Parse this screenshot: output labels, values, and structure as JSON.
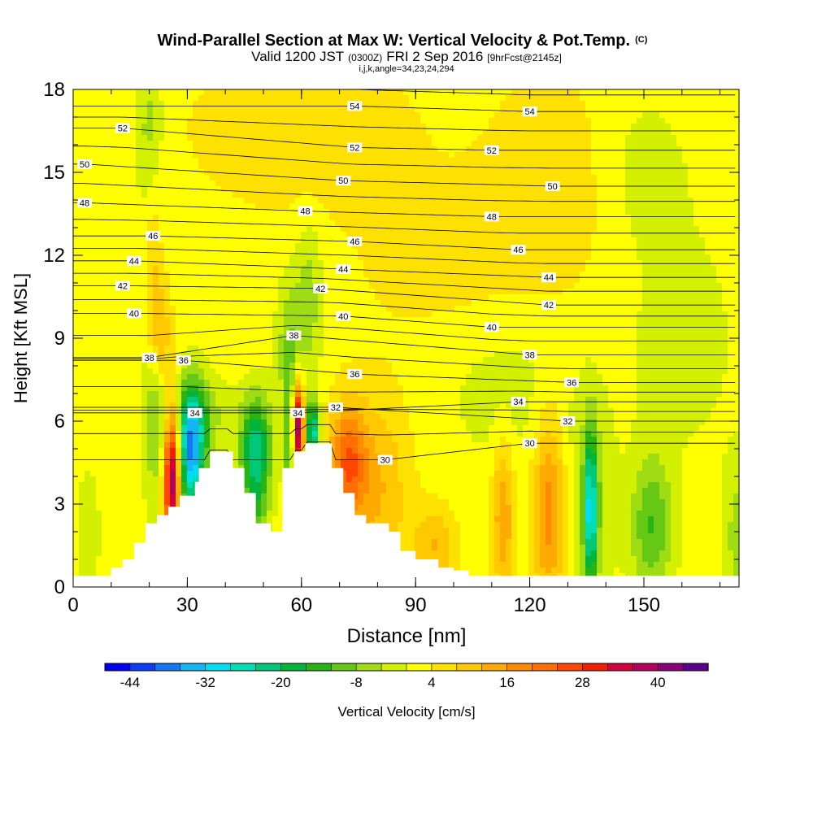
{
  "chart_data": {
    "type": "heatmap",
    "title": "Wind-Parallel Section at Max W: Vertical Velocity & Pot.Temp.",
    "title_mark": "(C)",
    "subtitle_parts": [
      "Valid 1200 JST",
      "(0300Z)",
      "FRI 2 Sep 2016",
      "[9hrFcst@2145z]"
    ],
    "subtitle2": "i,j,k,angle=34,23,24,294",
    "xlabel": "Distance [nm]",
    "ylabel": "Height [Kft MSL]",
    "xlim": [
      0,
      175
    ],
    "ylim": [
      0,
      18
    ],
    "xticks": [
      0,
      30,
      60,
      90,
      120,
      150
    ],
    "yticks": [
      0,
      3,
      6,
      9,
      12,
      15,
      18
    ],
    "colorbar": {
      "label": "Vertical Velocity [cm/s]",
      "ticks": [
        -44,
        -32,
        -20,
        -8,
        4,
        16,
        28,
        40
      ],
      "range": [
        -48,
        48
      ],
      "colors": [
        "#0000f0",
        "#0a3ef5",
        "#1478f5",
        "#14b4f5",
        "#00dcf0",
        "#00dcb4",
        "#00c878",
        "#00b43c",
        "#28b414",
        "#64c814",
        "#a0dc14",
        "#d2f000",
        "#ffff00",
        "#ffe100",
        "#ffc800",
        "#ffaa00",
        "#ff8c00",
        "#ff6e00",
        "#ff4600",
        "#f01e00",
        "#d2003c",
        "#b4005a",
        "#8c0078",
        "#5a008c"
      ]
    },
    "background_value": 2,
    "features": [
      {
        "x": 26,
        "y": 4.0,
        "sx": 1.6,
        "sy": 1.8,
        "w": 42
      },
      {
        "x": 22,
        "y": 6.5,
        "sx": 2.5,
        "sy": 2.5,
        "w": -12
      },
      {
        "x": 23,
        "y": 9.0,
        "sx": 2.0,
        "sy": 1.5,
        "w": 14
      },
      {
        "x": 21,
        "y": 11.5,
        "sx": 1.5,
        "sy": 2.5,
        "w": 6
      },
      {
        "x": 20,
        "y": 16.5,
        "sx": 2.5,
        "sy": 2.0,
        "w": -8
      },
      {
        "x": 31,
        "y": 4.8,
        "sx": 2.5,
        "sy": 1.6,
        "w": -36
      },
      {
        "x": 33,
        "y": 6.2,
        "sx": 5.0,
        "sy": 1.0,
        "w": -10
      },
      {
        "x": 48,
        "y": 5.3,
        "sx": 3.0,
        "sy": 1.2,
        "w": -20
      },
      {
        "x": 48,
        "y": 3.2,
        "sx": 2.5,
        "sy": 1.5,
        "w": -14
      },
      {
        "x": 57,
        "y": 5.2,
        "sx": 1.0,
        "sy": 1.5,
        "w": -20
      },
      {
        "x": 59,
        "y": 5.8,
        "sx": 1.2,
        "sy": 1.2,
        "w": 40
      },
      {
        "x": 57,
        "y": 8.5,
        "sx": 2.5,
        "sy": 1.8,
        "w": -10
      },
      {
        "x": 63,
        "y": 5.6,
        "sx": 1.2,
        "sy": 0.8,
        "w": -30
      },
      {
        "x": 62,
        "y": 10.5,
        "sx": 2.5,
        "sy": 2.0,
        "w": -8
      },
      {
        "x": 72,
        "y": 4.5,
        "sx": 3.5,
        "sy": 1.5,
        "w": 20
      },
      {
        "x": 80,
        "y": 3.5,
        "sx": 6.0,
        "sy": 2.5,
        "w": 10
      },
      {
        "x": 95,
        "y": 1.5,
        "sx": 4.0,
        "sy": 1.0,
        "w": 10
      },
      {
        "x": 113,
        "y": 2.5,
        "sx": 2.0,
        "sy": 2.0,
        "w": 14
      },
      {
        "x": 125,
        "y": 2.8,
        "sx": 3.0,
        "sy": 2.5,
        "w": 16
      },
      {
        "x": 136,
        "y": 2.8,
        "sx": 1.2,
        "sy": 2.0,
        "w": -26
      },
      {
        "x": 136,
        "y": 3.0,
        "sx": 4.0,
        "sy": 2.5,
        "w": -8
      },
      {
        "x": 152,
        "y": 2.2,
        "sx": 4.0,
        "sy": 1.8,
        "w": -14
      },
      {
        "x": 175,
        "y": 1.8,
        "sx": 3.0,
        "sy": 2.0,
        "w": -8
      },
      {
        "x": 4,
        "y": 2.0,
        "sx": 2.0,
        "sy": 1.5,
        "w": -6
      },
      {
        "x": 60,
        "y": 16.5,
        "sx": 20.0,
        "sy": 2.0,
        "w": 6
      },
      {
        "x": 125,
        "y": 14.5,
        "sx": 12.0,
        "sy": 3.0,
        "w": 5
      },
      {
        "x": 150,
        "y": 15.0,
        "sx": 8.0,
        "sy": 2.0,
        "w": -4
      },
      {
        "x": 115,
        "y": 7.0,
        "sx": 12.0,
        "sy": 2.0,
        "w": -4
      },
      {
        "x": 160,
        "y": 9.0,
        "sx": 10.0,
        "sy": 3.0,
        "w": -4
      },
      {
        "x": 95,
        "y": 12.0,
        "sx": 15.0,
        "sy": 2.0,
        "w": 4
      }
    ],
    "terrain": [
      {
        "x": 0,
        "h": 0.4
      },
      {
        "x": 10,
        "h": 0.4
      },
      {
        "x": 10,
        "h": 0.7
      },
      {
        "x": 13,
        "h": 0.7
      },
      {
        "x": 13,
        "h": 1.0
      },
      {
        "x": 16,
        "h": 1.0
      },
      {
        "x": 16,
        "h": 1.6
      },
      {
        "x": 19,
        "h": 1.6
      },
      {
        "x": 19,
        "h": 2.3
      },
      {
        "x": 22,
        "h": 2.3
      },
      {
        "x": 22,
        "h": 2.6
      },
      {
        "x": 25,
        "h": 2.6
      },
      {
        "x": 25,
        "h": 2.9
      },
      {
        "x": 28,
        "h": 2.9
      },
      {
        "x": 28,
        "h": 3.3
      },
      {
        "x": 32,
        "h": 3.3
      },
      {
        "x": 32,
        "h": 3.8
      },
      {
        "x": 33,
        "h": 3.8
      },
      {
        "x": 33,
        "h": 4.3
      },
      {
        "x": 36,
        "h": 4.3
      },
      {
        "x": 36,
        "h": 4.9
      },
      {
        "x": 42,
        "h": 4.9
      },
      {
        "x": 42,
        "h": 4.3
      },
      {
        "x": 45,
        "h": 4.3
      },
      {
        "x": 45,
        "h": 3.4
      },
      {
        "x": 48,
        "h": 3.4
      },
      {
        "x": 48,
        "h": 2.3
      },
      {
        "x": 52,
        "h": 2.3
      },
      {
        "x": 52,
        "h": 2.0
      },
      {
        "x": 55,
        "h": 2.0
      },
      {
        "x": 55,
        "h": 4.3
      },
      {
        "x": 58,
        "h": 4.3
      },
      {
        "x": 58,
        "h": 4.9
      },
      {
        "x": 61,
        "h": 4.9
      },
      {
        "x": 61,
        "h": 5.2
      },
      {
        "x": 68,
        "h": 5.2
      },
      {
        "x": 68,
        "h": 4.3
      },
      {
        "x": 71,
        "h": 4.3
      },
      {
        "x": 71,
        "h": 3.4
      },
      {
        "x": 74,
        "h": 3.4
      },
      {
        "x": 74,
        "h": 2.6
      },
      {
        "x": 77,
        "h": 2.6
      },
      {
        "x": 77,
        "h": 2.3
      },
      {
        "x": 83,
        "h": 2.3
      },
      {
        "x": 83,
        "h": 2.0
      },
      {
        "x": 86,
        "h": 2.0
      },
      {
        "x": 86,
        "h": 1.3
      },
      {
        "x": 90,
        "h": 1.3
      },
      {
        "x": 90,
        "h": 1.0
      },
      {
        "x": 96,
        "h": 1.0
      },
      {
        "x": 96,
        "h": 0.7
      },
      {
        "x": 100,
        "h": 0.7
      },
      {
        "x": 100,
        "h": 0.6
      },
      {
        "x": 104,
        "h": 0.6
      },
      {
        "x": 104,
        "h": 0.4
      },
      {
        "x": 175,
        "h": 0.4
      }
    ],
    "isentropes": {
      "label_values": [
        30,
        32,
        34,
        36,
        38,
        40,
        42,
        44,
        46,
        48,
        50,
        52,
        54
      ],
      "labels": [
        {
          "v": 30,
          "x": 82,
          "y": 4.6
        },
        {
          "v": 30,
          "x": 120,
          "y": 5.2
        },
        {
          "v": 32,
          "x": 69,
          "y": 6.5
        },
        {
          "v": 32,
          "x": 130,
          "y": 6.0
        },
        {
          "v": 34,
          "x": 32,
          "y": 6.3
        },
        {
          "v": 34,
          "x": 59,
          "y": 6.3
        },
        {
          "v": 34,
          "x": 117,
          "y": 6.7
        },
        {
          "v": 36,
          "x": 29,
          "y": 8.2
        },
        {
          "v": 36,
          "x": 74,
          "y": 7.7
        },
        {
          "v": 36,
          "x": 131,
          "y": 7.4
        },
        {
          "v": 38,
          "x": 20,
          "y": 8.3
        },
        {
          "v": 38,
          "x": 58,
          "y": 9.1
        },
        {
          "v": 38,
          "x": 120,
          "y": 8.4
        },
        {
          "v": 40,
          "x": 16,
          "y": 9.9
        },
        {
          "v": 40,
          "x": 71,
          "y": 9.8
        },
        {
          "v": 40,
          "x": 110,
          "y": 9.4
        },
        {
          "v": 42,
          "x": 13,
          "y": 10.9
        },
        {
          "v": 42,
          "x": 65,
          "y": 10.8
        },
        {
          "v": 42,
          "x": 125,
          "y": 10.2
        },
        {
          "v": 44,
          "x": 16,
          "y": 11.8
        },
        {
          "v": 44,
          "x": 71,
          "y": 11.5
        },
        {
          "v": 44,
          "x": 125,
          "y": 11.2
        },
        {
          "v": 46,
          "x": 21,
          "y": 12.7
        },
        {
          "v": 46,
          "x": 74,
          "y": 12.5
        },
        {
          "v": 46,
          "x": 117,
          "y": 12.2
        },
        {
          "v": 48,
          "x": 3,
          "y": 13.9
        },
        {
          "v": 48,
          "x": 61,
          "y": 13.6
        },
        {
          "v": 48,
          "x": 110,
          "y": 13.4
        },
        {
          "v": 50,
          "x": 3,
          "y": 15.3
        },
        {
          "v": 50,
          "x": 71,
          "y": 14.7
        },
        {
          "v": 50,
          "x": 126,
          "y": 14.5
        },
        {
          "v": 52,
          "x": 13,
          "y": 16.6
        },
        {
          "v": 52,
          "x": 74,
          "y": 15.9
        },
        {
          "v": 52,
          "x": 110,
          "y": 15.8
        },
        {
          "v": 54,
          "x": 74,
          "y": 17.4
        },
        {
          "v": 54,
          "x": 120,
          "y": 17.2
        }
      ]
    }
  }
}
